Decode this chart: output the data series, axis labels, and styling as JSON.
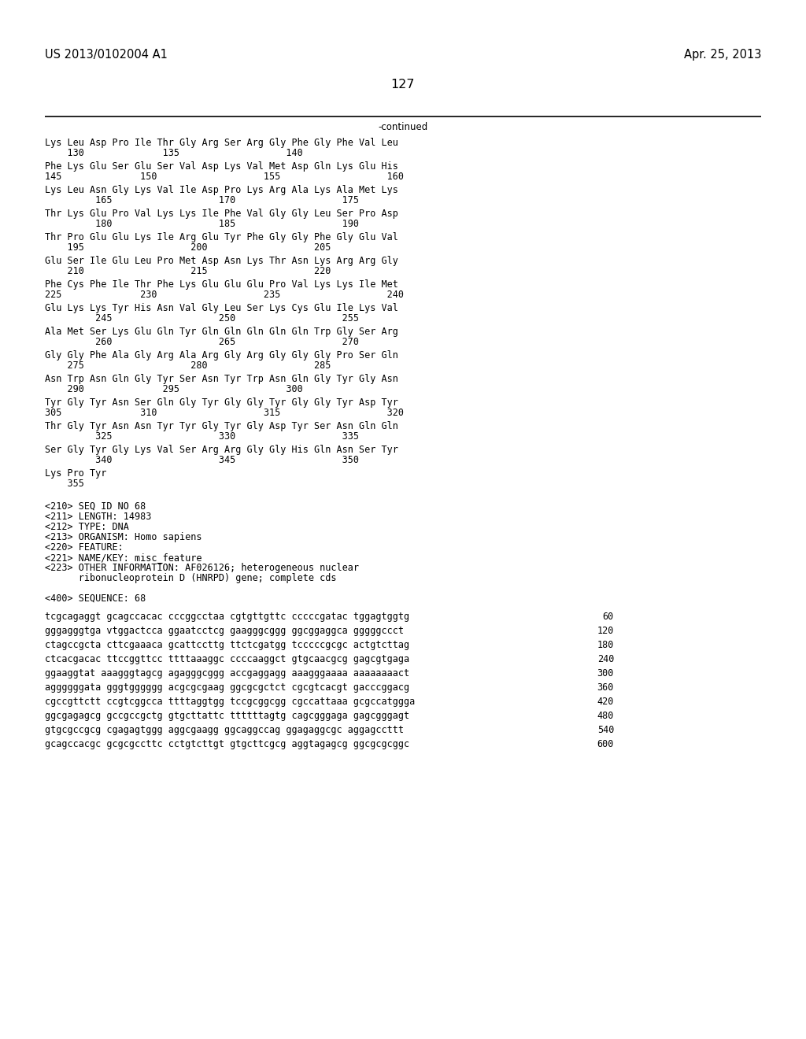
{
  "header_left": "US 2013/0102004 A1",
  "header_right": "Apr. 25, 2013",
  "page_number": "127",
  "continued_label": "-continued",
  "background_color": "#ffffff",
  "text_color": "#000000",
  "font_size": 8.5,
  "header_font_size": 10.5,
  "page_num_font_size": 11.5,
  "sequence_blocks": [
    {
      "seq": "Lys Leu Asp Pro Ile Thr Gly Arg Ser Arg Gly Phe Gly Phe Val Leu",
      "num": "    130              135                   140"
    },
    {
      "seq": "Phe Lys Glu Ser Glu Ser Val Asp Lys Val Met Asp Gln Lys Glu His",
      "num": "145              150                   155                   160"
    },
    {
      "seq": "Lys Leu Asn Gly Lys Val Ile Asp Pro Lys Arg Ala Lys Ala Met Lys",
      "num": "         165                   170                   175"
    },
    {
      "seq": "Thr Lys Glu Pro Val Lys Lys Ile Phe Val Gly Gly Leu Ser Pro Asp",
      "num": "         180                   185                   190"
    },
    {
      "seq": "Thr Pro Glu Glu Lys Ile Arg Glu Tyr Phe Gly Gly Phe Gly Glu Val",
      "num": "    195                   200                   205"
    },
    {
      "seq": "Glu Ser Ile Glu Leu Pro Met Asp Asn Lys Thr Asn Lys Arg Arg Gly",
      "num": "    210                   215                   220"
    },
    {
      "seq": "Phe Cys Phe Ile Thr Phe Lys Glu Glu Glu Pro Val Lys Lys Ile Met",
      "num": "225              230                   235                   240"
    },
    {
      "seq": "Glu Lys Lys Tyr His Asn Val Gly Leu Ser Lys Cys Glu Ile Lys Val",
      "num": "         245                   250                   255"
    },
    {
      "seq": "Ala Met Ser Lys Glu Gln Tyr Gln Gln Gln Gln Gln Trp Gly Ser Arg",
      "num": "         260                   265                   270"
    },
    {
      "seq": "Gly Gly Phe Ala Gly Arg Ala Arg Gly Arg Gly Gly Gly Pro Ser Gln",
      "num": "    275                   280                   285"
    },
    {
      "seq": "Asn Trp Asn Gln Gly Tyr Ser Asn Tyr Trp Asn Gln Gly Tyr Gly Asn",
      "num": "    290              295                   300"
    },
    {
      "seq": "Tyr Gly Tyr Asn Ser Gln Gly Tyr Gly Gly Tyr Gly Gly Tyr Asp Tyr",
      "num": "305              310                   315                   320"
    },
    {
      "seq": "Thr Gly Tyr Asn Asn Tyr Tyr Gly Tyr Gly Asp Tyr Ser Asn Gln Gln",
      "num": "         325                   330                   335"
    },
    {
      "seq": "Ser Gly Tyr Gly Lys Val Ser Arg Arg Gly Gly His Gln Asn Ser Tyr",
      "num": "         340                   345                   350"
    },
    {
      "seq": "Lys Pro Tyr",
      "num": "    355"
    }
  ],
  "metadata_lines": [
    "<210> SEQ ID NO 68",
    "<211> LENGTH: 14983",
    "<212> TYPE: DNA",
    "<213> ORGANISM: Homo sapiens",
    "<220> FEATURE:",
    "<221> NAME/KEY: misc_feature",
    "<223> OTHER INFORMATION: AF026126; heterogeneous nuclear",
    "      ribonucleoprotein D (HNRPD) gene; complete cds",
    "",
    "<400> SEQUENCE: 68"
  ],
  "dna_lines": [
    [
      "tcgcagaggt gcagccacac cccggcctaa cgtgttgttc cccccgatac tggagtggtg",
      "60"
    ],
    [
      "gggagggtga vtggactcca ggaatcctcg gaagggcggg ggcggaggca gggggccct",
      "120"
    ],
    [
      "ctagccgcta cttcgaaaca gcattccttg ttctcgatgg tcccccgcgc actgtcttag",
      "180"
    ],
    [
      "ctcacgacac ttccggttcc ttttaaaggc ccccaaggct gtgcaacgcg gagcgtgaga",
      "240"
    ],
    [
      "ggaaggtat aaagggtagcg agagggcggg accgaggagg aaagggaaaa aaaaaaaact",
      "300"
    ],
    [
      "aggggggata gggtgggggg acgcgcgaag ggcgcgctct cgcgtcacgt gacccggacg",
      "360"
    ],
    [
      "cgccgttctt ccgtcggcca ttttaggtgg tccgcggcgg cgccattaaa gcgccatggga",
      "420"
    ],
    [
      "ggcgagagcg gccgccgctg gtgcttattc ttttttagtg cagcgggaga gagcgggagt",
      "480"
    ],
    [
      "gtgcgccgcg cgagagtggg aggcgaagg ggcaggccag ggagaggcgc aggagccttt",
      "540"
    ],
    [
      "gcagccacgc gcgcgccttc cctgtcttgt gtgcttcgcg aggtagagcg ggcgcgcggc",
      "600"
    ]
  ]
}
